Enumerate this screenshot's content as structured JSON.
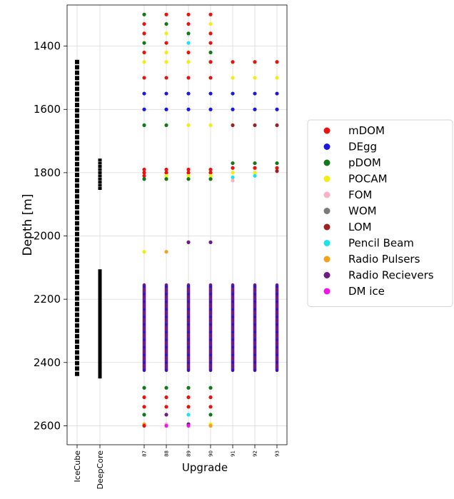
{
  "chart_data": {
    "type": "scatter",
    "ylabel": "Depth [m]",
    "xlabel": "Upgrade",
    "ylim": [
      2660,
      1270
    ],
    "y_inverted": true,
    "y_ticks": [
      1400,
      1600,
      1800,
      2000,
      2200,
      2400,
      2600
    ],
    "grid": true,
    "legend_position": "right, outside plot",
    "x_categories": [
      {
        "label": "IceCube",
        "small": false
      },
      {
        "label": "DeepCore",
        "small": false
      },
      {
        "label": "87",
        "small": true
      },
      {
        "label": "88",
        "small": true
      },
      {
        "label": "89",
        "small": true
      },
      {
        "label": "90",
        "small": true
      },
      {
        "label": "91",
        "small": true
      },
      {
        "label": "92",
        "small": true
      },
      {
        "label": "93",
        "small": true
      }
    ],
    "legend": [
      {
        "name": "mDOM",
        "color": "#e8130f"
      },
      {
        "name": "DEgg",
        "color": "#1d18e0"
      },
      {
        "name": "pDOM",
        "color": "#12781a"
      },
      {
        "name": "POCAM",
        "color": "#f2ee13"
      },
      {
        "name": "FOM",
        "color": "#f7b2c4"
      },
      {
        "name": "WOM",
        "color": "#7a7a7a"
      },
      {
        "name": "LOM",
        "color": "#9b2222"
      },
      {
        "name": "Pencil Beam",
        "color": "#1ce3ea"
      },
      {
        "name": "Radio Pulsers",
        "color": "#f4a01c"
      },
      {
        "name": "Radio Recievers",
        "color": "#6c1a86"
      },
      {
        "name": "DM ice",
        "color": "#ee15e8"
      }
    ],
    "icecube_string": {
      "color": "#000000",
      "from": 1450,
      "to": 2450,
      "spacing": 17
    },
    "deepcore_string": {
      "color": "#000000",
      "segments": [
        {
          "from": 1760,
          "to": 1850,
          "spacing": 10
        },
        {
          "from": 2110,
          "to": 2450,
          "spacing": 7
        }
      ]
    },
    "upgrade_columns": [
      {
        "category": "87",
        "dense": {
          "from": 2155,
          "to": 2425,
          "color": "#6c1a86",
          "accent": "#1d18e0"
        },
        "points": [
          {
            "y": 1300,
            "s": "pDOM"
          },
          {
            "y": 1330,
            "s": "mDOM"
          },
          {
            "y": 1360,
            "s": "mDOM"
          },
          {
            "y": 1390,
            "s": "pDOM"
          },
          {
            "y": 1420,
            "s": "mDOM"
          },
          {
            "y": 1450,
            "s": "POCAM"
          },
          {
            "y": 1500,
            "s": "mDOM"
          },
          {
            "y": 1550,
            "s": "DEgg"
          },
          {
            "y": 1600,
            "s": "DEgg"
          },
          {
            "y": 1650,
            "s": "pDOM"
          },
          {
            "y": 1790,
            "s": "mDOM"
          },
          {
            "y": 1800,
            "s": "mDOM"
          },
          {
            "y": 1810,
            "s": "mDOM"
          },
          {
            "y": 1820,
            "s": "pDOM"
          },
          {
            "y": 2050,
            "s": "POCAM"
          },
          {
            "y": 2480,
            "s": "pDOM"
          },
          {
            "y": 2510,
            "s": "mDOM"
          },
          {
            "y": 2540,
            "s": "mDOM"
          },
          {
            "y": 2565,
            "s": "pDOM"
          },
          {
            "y": 2595,
            "s": "Radio Pulsers"
          },
          {
            "y": 2600,
            "s": "mDOM"
          }
        ]
      },
      {
        "category": "88",
        "dense": {
          "from": 2155,
          "to": 2425,
          "color": "#6c1a86",
          "accent": "#1d18e0"
        },
        "points": [
          {
            "y": 1300,
            "s": "mDOM"
          },
          {
            "y": 1330,
            "s": "pDOM"
          },
          {
            "y": 1360,
            "s": "POCAM"
          },
          {
            "y": 1390,
            "s": "mDOM"
          },
          {
            "y": 1420,
            "s": "POCAM"
          },
          {
            "y": 1450,
            "s": "POCAM"
          },
          {
            "y": 1500,
            "s": "mDOM"
          },
          {
            "y": 1550,
            "s": "DEgg"
          },
          {
            "y": 1600,
            "s": "DEgg"
          },
          {
            "y": 1650,
            "s": "pDOM"
          },
          {
            "y": 1790,
            "s": "mDOM"
          },
          {
            "y": 1800,
            "s": "mDOM"
          },
          {
            "y": 1810,
            "s": "POCAM"
          },
          {
            "y": 1820,
            "s": "pDOM"
          },
          {
            "y": 2050,
            "s": "Radio Pulsers"
          },
          {
            "y": 2480,
            "s": "pDOM"
          },
          {
            "y": 2510,
            "s": "mDOM"
          },
          {
            "y": 2540,
            "s": "mDOM"
          },
          {
            "y": 2565,
            "s": "Radio Recievers"
          },
          {
            "y": 2595,
            "s": "FOM"
          },
          {
            "y": 2600,
            "s": "DM ice"
          }
        ]
      },
      {
        "category": "89",
        "dense": {
          "from": 2155,
          "to": 2425,
          "color": "#6c1a86",
          "accent": "#1d18e0"
        },
        "points": [
          {
            "y": 1300,
            "s": "mDOM"
          },
          {
            "y": 1330,
            "s": "mDOM"
          },
          {
            "y": 1360,
            "s": "pDOM"
          },
          {
            "y": 1390,
            "s": "Pencil Beam"
          },
          {
            "y": 1420,
            "s": "mDOM"
          },
          {
            "y": 1450,
            "s": "POCAM"
          },
          {
            "y": 1500,
            "s": "mDOM"
          },
          {
            "y": 1550,
            "s": "DEgg"
          },
          {
            "y": 1600,
            "s": "DEgg"
          },
          {
            "y": 1650,
            "s": "POCAM"
          },
          {
            "y": 1790,
            "s": "mDOM"
          },
          {
            "y": 1800,
            "s": "mDOM"
          },
          {
            "y": 1810,
            "s": "POCAM"
          },
          {
            "y": 1820,
            "s": "pDOM"
          },
          {
            "y": 2020,
            "s": "Radio Recievers"
          },
          {
            "y": 2480,
            "s": "pDOM"
          },
          {
            "y": 2510,
            "s": "mDOM"
          },
          {
            "y": 2540,
            "s": "mDOM"
          },
          {
            "y": 2565,
            "s": "Pencil Beam"
          },
          {
            "y": 2595,
            "s": "Radio Recievers"
          },
          {
            "y": 2600,
            "s": "DM ice"
          }
        ]
      },
      {
        "category": "90",
        "dense": {
          "from": 2155,
          "to": 2425,
          "color": "#6c1a86",
          "accent": "#1d18e0"
        },
        "points": [
          {
            "y": 1300,
            "s": "mDOM"
          },
          {
            "y": 1330,
            "s": "POCAM"
          },
          {
            "y": 1360,
            "s": "mDOM"
          },
          {
            "y": 1390,
            "s": "mDOM"
          },
          {
            "y": 1420,
            "s": "pDOM"
          },
          {
            "y": 1450,
            "s": "mDOM"
          },
          {
            "y": 1500,
            "s": "mDOM"
          },
          {
            "y": 1550,
            "s": "DEgg"
          },
          {
            "y": 1600,
            "s": "DEgg"
          },
          {
            "y": 1650,
            "s": "POCAM"
          },
          {
            "y": 1790,
            "s": "mDOM"
          },
          {
            "y": 1800,
            "s": "mDOM"
          },
          {
            "y": 1810,
            "s": "POCAM"
          },
          {
            "y": 1820,
            "s": "pDOM"
          },
          {
            "y": 2020,
            "s": "Radio Recievers"
          },
          {
            "y": 2480,
            "s": "pDOM"
          },
          {
            "y": 2510,
            "s": "mDOM"
          },
          {
            "y": 2540,
            "s": "mDOM"
          },
          {
            "y": 2565,
            "s": "pDOM"
          },
          {
            "y": 2595,
            "s": "POCAM"
          },
          {
            "y": 2600,
            "s": "Radio Pulsers"
          }
        ]
      },
      {
        "category": "91",
        "dense": {
          "from": 2155,
          "to": 2425,
          "color": "#6c1a86",
          "accent": "#1d18e0"
        },
        "points": [
          {
            "y": 1450,
            "s": "mDOM"
          },
          {
            "y": 1500,
            "s": "POCAM"
          },
          {
            "y": 1550,
            "s": "DEgg"
          },
          {
            "y": 1600,
            "s": "DEgg"
          },
          {
            "y": 1650,
            "s": "LOM"
          },
          {
            "y": 1770,
            "s": "pDOM"
          },
          {
            "y": 1785,
            "s": "mDOM"
          },
          {
            "y": 1800,
            "s": "POCAM"
          },
          {
            "y": 1815,
            "s": "Pencil Beam"
          },
          {
            "y": 1825,
            "s": "FOM"
          }
        ]
      },
      {
        "category": "92",
        "dense": {
          "from": 2155,
          "to": 2425,
          "color": "#6c1a86",
          "accent": "#1d18e0"
        },
        "points": [
          {
            "y": 1450,
            "s": "mDOM"
          },
          {
            "y": 1500,
            "s": "POCAM"
          },
          {
            "y": 1550,
            "s": "DEgg"
          },
          {
            "y": 1600,
            "s": "DEgg"
          },
          {
            "y": 1650,
            "s": "LOM"
          },
          {
            "y": 1770,
            "s": "pDOM"
          },
          {
            "y": 1785,
            "s": "mDOM"
          },
          {
            "y": 1800,
            "s": "POCAM"
          },
          {
            "y": 1810,
            "s": "Pencil Beam"
          }
        ]
      },
      {
        "category": "93",
        "dense": {
          "from": 2155,
          "to": 2425,
          "color": "#6c1a86",
          "accent": "#1d18e0"
        },
        "points": [
          {
            "y": 1450,
            "s": "mDOM"
          },
          {
            "y": 1500,
            "s": "POCAM"
          },
          {
            "y": 1550,
            "s": "DEgg"
          },
          {
            "y": 1600,
            "s": "DEgg"
          },
          {
            "y": 1650,
            "s": "LOM"
          },
          {
            "y": 1770,
            "s": "pDOM"
          },
          {
            "y": 1785,
            "s": "mDOM"
          },
          {
            "y": 1795,
            "s": "LOM"
          }
        ]
      }
    ]
  }
}
